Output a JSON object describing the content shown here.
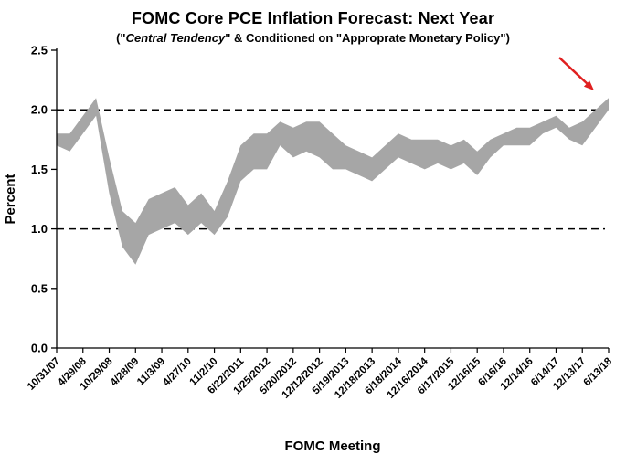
{
  "subtitle": {
    "part1": "(\"",
    "italic": "Central Tendency",
    "part2": "\" & Conditioned on \"Approprate Monetary Policy\")"
  },
  "chart_data": {
    "type": "area",
    "title": "FOMC Core PCE Inflation Forecast: Next Year",
    "subtitle": "(\"Central Tendency\" & Conditioned on \"Approprate Monetary Policy\")",
    "xlabel": "FOMC Meeting",
    "ylabel": "Percent",
    "ylim": [
      0,
      2.5
    ],
    "ytick_step": 0.5,
    "ytick_labels": [
      "0.0",
      "0.5",
      "1.0",
      "1.5",
      "2.0",
      "2.5"
    ],
    "grid": false,
    "dashed_reference_lines": [
      1.0,
      2.0
    ],
    "band_color": "#a6a6a6",
    "axis_color": "#000000",
    "annotation": {
      "type": "arrow",
      "color": "#e02020",
      "points_to": "6/13/18"
    },
    "series_description": "Shaded band between lower and upper bound of FOMC central tendency forecast for next-year core PCE inflation",
    "points": [
      {
        "label": "10/31/07",
        "low": 1.7,
        "high": 1.8
      },
      {
        "label": "",
        "low": 1.65,
        "high": 1.8
      },
      {
        "label": "4/29/08",
        "low": 1.8,
        "high": 1.95
      },
      {
        "label": "",
        "low": 1.95,
        "high": 2.1
      },
      {
        "label": "10/29/08",
        "low": 1.3,
        "high": 1.6
      },
      {
        "label": "",
        "low": 0.85,
        "high": 1.15
      },
      {
        "label": "4/28/09",
        "low": 0.7,
        "high": 1.05
      },
      {
        "label": "",
        "low": 0.95,
        "high": 1.25
      },
      {
        "label": "11/3/09",
        "low": 1.0,
        "high": 1.3
      },
      {
        "label": "",
        "low": 1.05,
        "high": 1.35
      },
      {
        "label": "4/27/10",
        "low": 0.95,
        "high": 1.2
      },
      {
        "label": "",
        "low": 1.05,
        "high": 1.3
      },
      {
        "label": "11/2/10",
        "low": 0.95,
        "high": 1.15
      },
      {
        "label": "",
        "low": 1.1,
        "high": 1.4
      },
      {
        "label": "6/22/2011",
        "low": 1.4,
        "high": 1.7
      },
      {
        "label": "",
        "low": 1.5,
        "high": 1.8
      },
      {
        "label": "1/25/2012",
        "low": 1.5,
        "high": 1.8
      },
      {
        "label": "",
        "low": 1.7,
        "high": 1.9
      },
      {
        "label": "5/20/2012",
        "low": 1.6,
        "high": 1.85
      },
      {
        "label": "",
        "low": 1.65,
        "high": 1.9
      },
      {
        "label": "12/12/2012",
        "low": 1.6,
        "high": 1.9
      },
      {
        "label": "",
        "low": 1.5,
        "high": 1.8
      },
      {
        "label": "5/19/2013",
        "low": 1.5,
        "high": 1.7
      },
      {
        "label": "",
        "low": 1.45,
        "high": 1.65
      },
      {
        "label": "12/18/2013",
        "low": 1.4,
        "high": 1.6
      },
      {
        "label": "",
        "low": 1.5,
        "high": 1.7
      },
      {
        "label": "6/18/2014",
        "low": 1.6,
        "high": 1.8
      },
      {
        "label": "",
        "low": 1.55,
        "high": 1.75
      },
      {
        "label": "12/16/2014",
        "low": 1.5,
        "high": 1.75
      },
      {
        "label": "",
        "low": 1.55,
        "high": 1.75
      },
      {
        "label": "6/17/2015",
        "low": 1.5,
        "high": 1.7
      },
      {
        "label": "",
        "low": 1.55,
        "high": 1.75
      },
      {
        "label": "12/16/15",
        "low": 1.45,
        "high": 1.65
      },
      {
        "label": "",
        "low": 1.6,
        "high": 1.75
      },
      {
        "label": "6/16/16",
        "low": 1.7,
        "high": 1.8
      },
      {
        "label": "",
        "low": 1.7,
        "high": 1.85
      },
      {
        "label": "12/14/16",
        "low": 1.7,
        "high": 1.85
      },
      {
        "label": "",
        "low": 1.8,
        "high": 1.9
      },
      {
        "label": "6/14/17",
        "low": 1.85,
        "high": 1.95
      },
      {
        "label": "",
        "low": 1.75,
        "high": 1.85
      },
      {
        "label": "12/13/17",
        "low": 1.7,
        "high": 1.9
      },
      {
        "label": "",
        "low": 1.85,
        "high": 2.0
      },
      {
        "label": "6/13/18",
        "low": 2.0,
        "high": 2.1
      }
    ]
  }
}
